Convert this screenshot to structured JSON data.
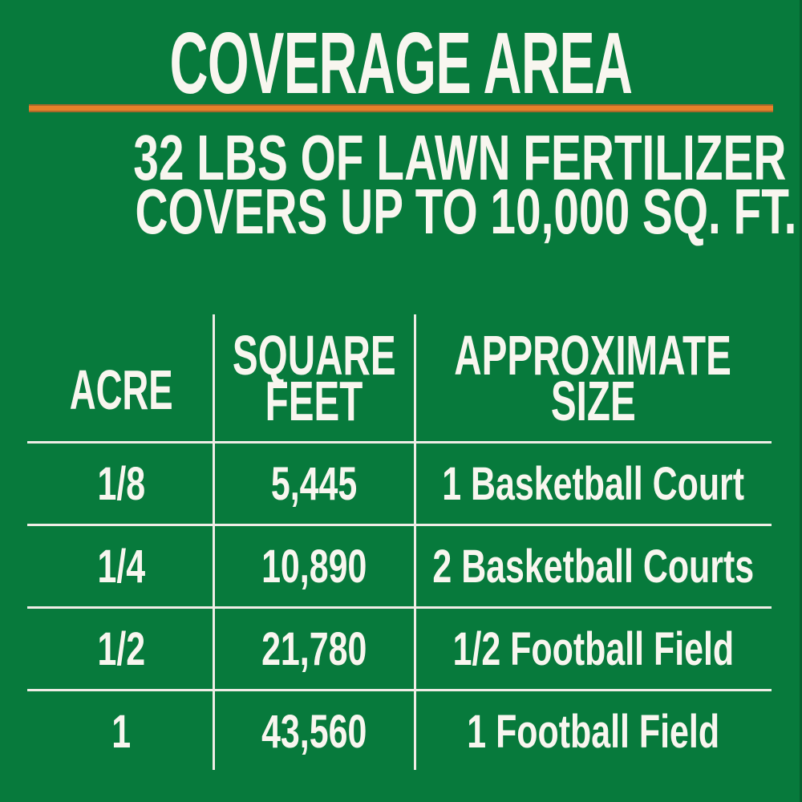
{
  "colors": {
    "background": "#077A3C",
    "accent_orange": "#E5812A",
    "accent_orange_dark": "#A8692B",
    "text": "#F8F6EF",
    "table_line": "#EFEDE6"
  },
  "header": {
    "title": "COVERAGE AREA",
    "subtitle_line1": "32 LBS OF LAWN FERTILIZER",
    "subtitle_line2": "COVERS UP TO 10,000 SQ. FT."
  },
  "table": {
    "columns": [
      {
        "line1": "ACRE",
        "line2": ""
      },
      {
        "line1": "SQUARE",
        "line2": "FEET"
      },
      {
        "line1": "APPROXIMATE",
        "line2": "SIZE"
      }
    ],
    "rows": [
      {
        "acre": "1/8",
        "square_feet": "5,445",
        "approximate_size": "1 Basketball Court"
      },
      {
        "acre": "1/4",
        "square_feet": "10,890",
        "approximate_size": "2 Basketball Courts"
      },
      {
        "acre": "1/2",
        "square_feet": "21,780",
        "approximate_size": "1/2 Football Field"
      },
      {
        "acre": "1",
        "square_feet": "43,560",
        "approximate_size": "1 Football Field"
      }
    ]
  },
  "chart_data": {
    "type": "table",
    "title": "COVERAGE AREA",
    "subtitle": "32 LBS OF LAWN FERTILIZER COVERS UP TO 10,000 SQ. FT.",
    "columns": [
      "ACRE",
      "SQUARE FEET",
      "APPROXIMATE SIZE"
    ],
    "rows": [
      [
        "1/8",
        "5,445",
        "1 Basketball Court"
      ],
      [
        "1/4",
        "10,890",
        "2 Basketball Courts"
      ],
      [
        "1/2",
        "21,780",
        "1/2 Football Field"
      ],
      [
        "1",
        "43,560",
        "1 Football Field"
      ]
    ],
    "acres_numeric": [
      0.125,
      0.25,
      0.5,
      1
    ],
    "square_feet_numeric": [
      5445,
      10890,
      21780,
      43560
    ]
  }
}
